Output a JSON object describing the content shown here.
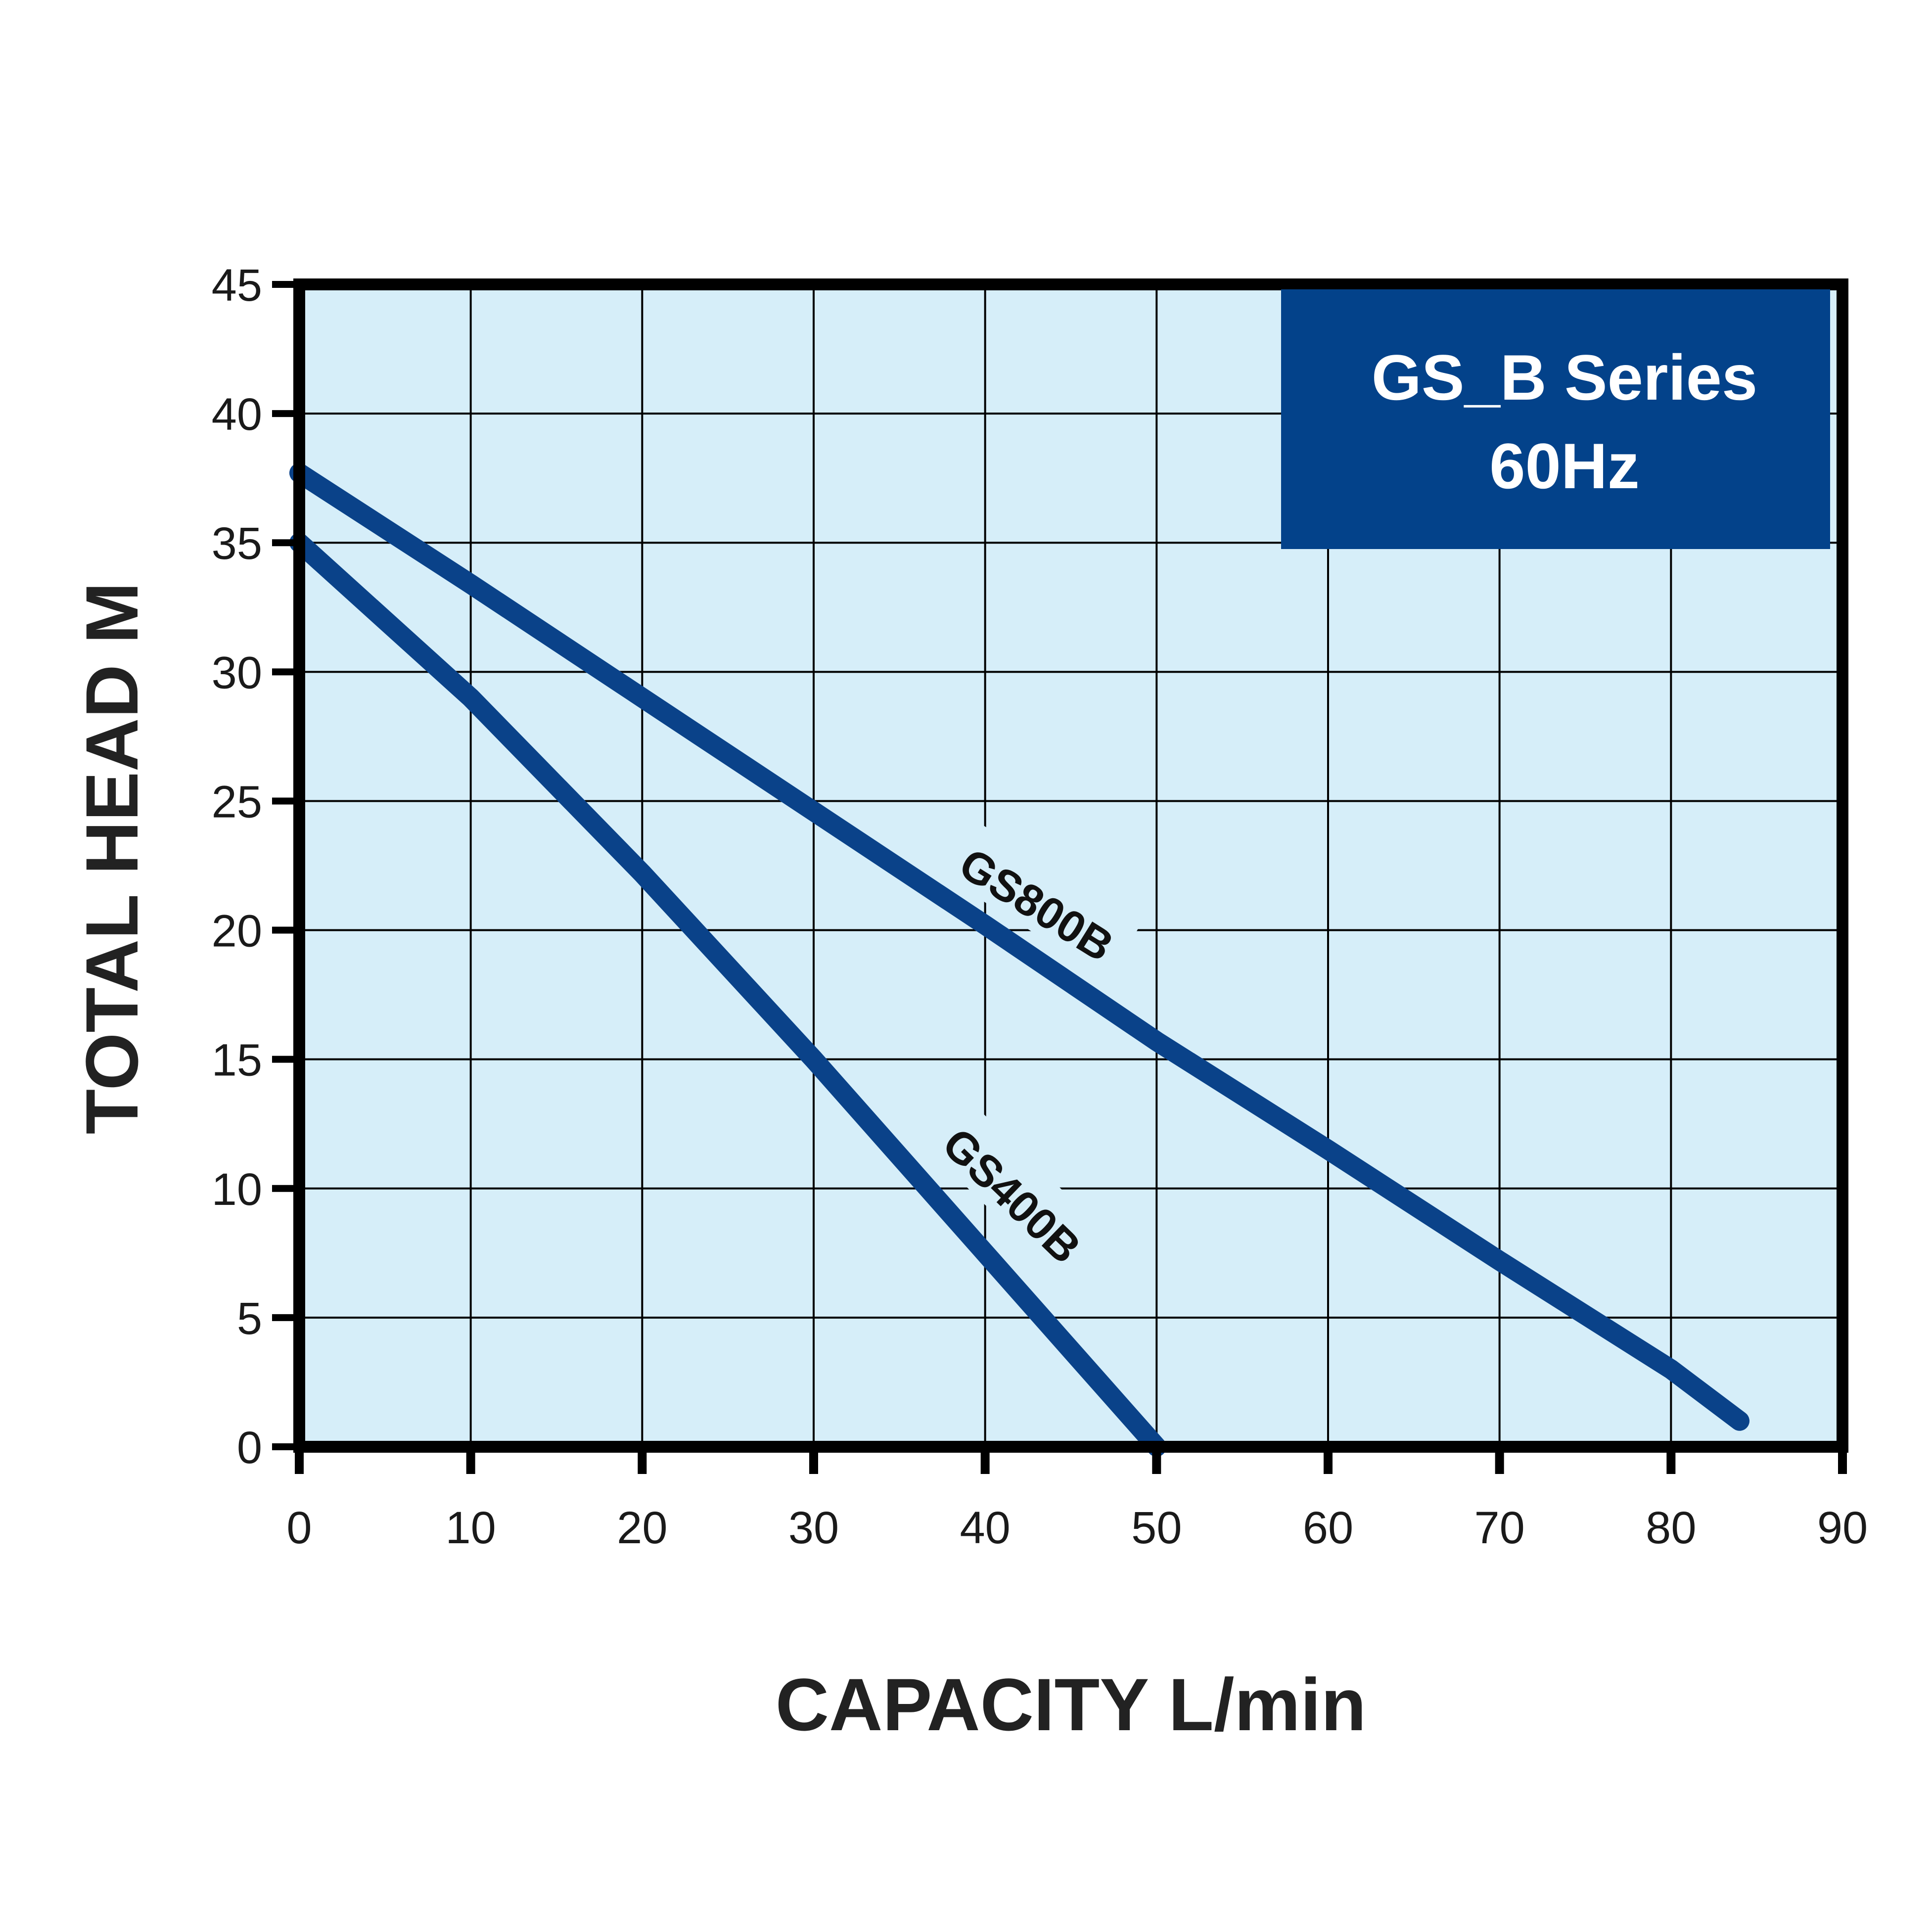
{
  "chart_data": {
    "type": "line",
    "title": "",
    "xlabel": "CAPACITY  L/min",
    "ylabel": "TOTAL HEAD M",
    "xlim": [
      0,
      90
    ],
    "ylim": [
      0,
      45
    ],
    "x_ticks": [
      0,
      10,
      20,
      30,
      40,
      50,
      60,
      70,
      80,
      90
    ],
    "y_ticks": [
      0,
      5,
      10,
      15,
      20,
      25,
      30,
      35,
      40,
      45
    ],
    "grid": true,
    "plot_background": "#d6eef9",
    "series": [
      {
        "name": "GS800B",
        "color": "#0a4289",
        "x": [
          0,
          10,
          20,
          30,
          40,
          50,
          60,
          70,
          80,
          84
        ],
        "y": [
          37.7,
          33.4,
          29.0,
          24.6,
          20.2,
          15.7,
          11.5,
          7.2,
          3.0,
          1.0
        ]
      },
      {
        "name": "GS400B",
        "color": "#0a4289",
        "x": [
          0,
          10,
          20,
          30,
          40,
          50
        ],
        "y": [
          35.0,
          29.0,
          22.2,
          15.0,
          7.5,
          0.0
        ]
      }
    ],
    "legend_box": {
      "line1": "GS_B Series",
      "line2": "60Hz",
      "placement": "top-right",
      "background": "#03428a"
    }
  }
}
